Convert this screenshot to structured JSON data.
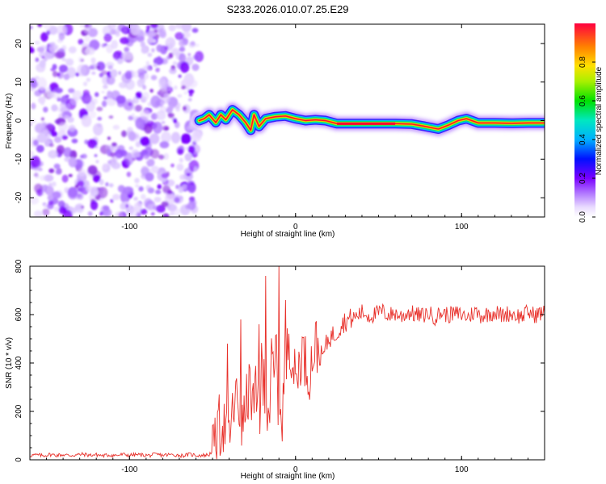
{
  "title": "S233.2026.010.07.25.E29",
  "colors": {
    "signal_line": "#e8302a",
    "frame": "#000000",
    "background": "#ffffff"
  },
  "chart_data": [
    {
      "type": "heatmap",
      "title": "",
      "xlabel": "Height of straight line (km)",
      "ylabel": "Frequency (Hz)",
      "xlim": [
        -160,
        150
      ],
      "ylim": [
        -25,
        25
      ],
      "x_ticks": [
        -100,
        0,
        100
      ],
      "y_ticks": [
        -20,
        -10,
        0,
        10,
        20
      ],
      "noise_region_x": [
        -160,
        -58
      ],
      "ridge": [
        [
          -58,
          0
        ],
        [
          -55,
          0.5
        ],
        [
          -52,
          1.5
        ],
        [
          -48,
          -0.5
        ],
        [
          -45,
          1.5
        ],
        [
          -42,
          0.2
        ],
        [
          -38,
          2.8
        ],
        [
          -34,
          1.5
        ],
        [
          -30,
          -0.5
        ],
        [
          -27,
          -2.5
        ],
        [
          -25,
          1.5
        ],
        [
          -22,
          -1.5
        ],
        [
          -18,
          0.5
        ],
        [
          -12,
          1.0
        ],
        [
          -6,
          1.2
        ],
        [
          0,
          0.5
        ],
        [
          6,
          0.0
        ],
        [
          12,
          0.2
        ],
        [
          18,
          0.0
        ],
        [
          25,
          -0.8
        ],
        [
          40,
          -0.8
        ],
        [
          60,
          -0.8
        ],
        [
          70,
          -0.9
        ],
        [
          78,
          -1.5
        ],
        [
          86,
          -2.2
        ],
        [
          92,
          -1.2
        ],
        [
          98,
          0.0
        ],
        [
          103,
          0.5
        ],
        [
          110,
          -0.6
        ],
        [
          120,
          -0.6
        ],
        [
          130,
          -0.7
        ],
        [
          140,
          -0.6
        ],
        [
          150,
          -0.6
        ]
      ],
      "colorbar": {
        "label": "Normalized spectral amplitude",
        "ticks": [
          "0.0",
          "0.2",
          "0.4",
          "0.6",
          "0.8"
        ],
        "range": [
          0,
          1
        ]
      }
    },
    {
      "type": "line",
      "title": "",
      "xlabel": "Height of straight line (km)",
      "ylabel": "SNR (10 * v/v)",
      "xlim": [
        -160,
        150
      ],
      "ylim": [
        0,
        800
      ],
      "x_ticks": [
        -100,
        0,
        100
      ],
      "y_ticks": [
        0,
        200,
        400,
        600,
        800
      ],
      "series": [
        {
          "name": "SNR",
          "x_start": -160,
          "x_step": 4,
          "values": [
            18,
            20,
            17,
            22,
            19,
            21,
            18,
            20,
            23,
            19,
            21,
            17,
            20,
            18,
            22,
            19,
            21,
            20,
            18,
            22,
            19,
            21,
            20,
            17,
            22,
            19,
            18,
            21,
            60,
            150,
            100,
            260,
            130,
            300,
            180,
            310,
            240,
            420,
            220,
            520,
            320,
            460,
            350,
            480,
            420,
            505,
            520,
            565,
            580,
            590,
            610,
            595,
            600,
            615,
            598,
            605,
            592,
            610,
            600,
            595,
            606,
            590,
            608,
            598,
            604,
            600,
            590,
            612,
            595,
            603,
            610,
            597,
            605,
            600,
            592,
            610,
            598,
            606
          ],
          "peaks": [
            [
              -46,
              270
            ],
            [
              -41,
              480
            ],
            [
              -33,
              580
            ],
            [
              -22,
              560
            ],
            [
              -18,
              760
            ],
            [
              -13,
              340
            ],
            [
              -10,
              800
            ],
            [
              -6,
              660
            ]
          ]
        }
      ]
    }
  ]
}
